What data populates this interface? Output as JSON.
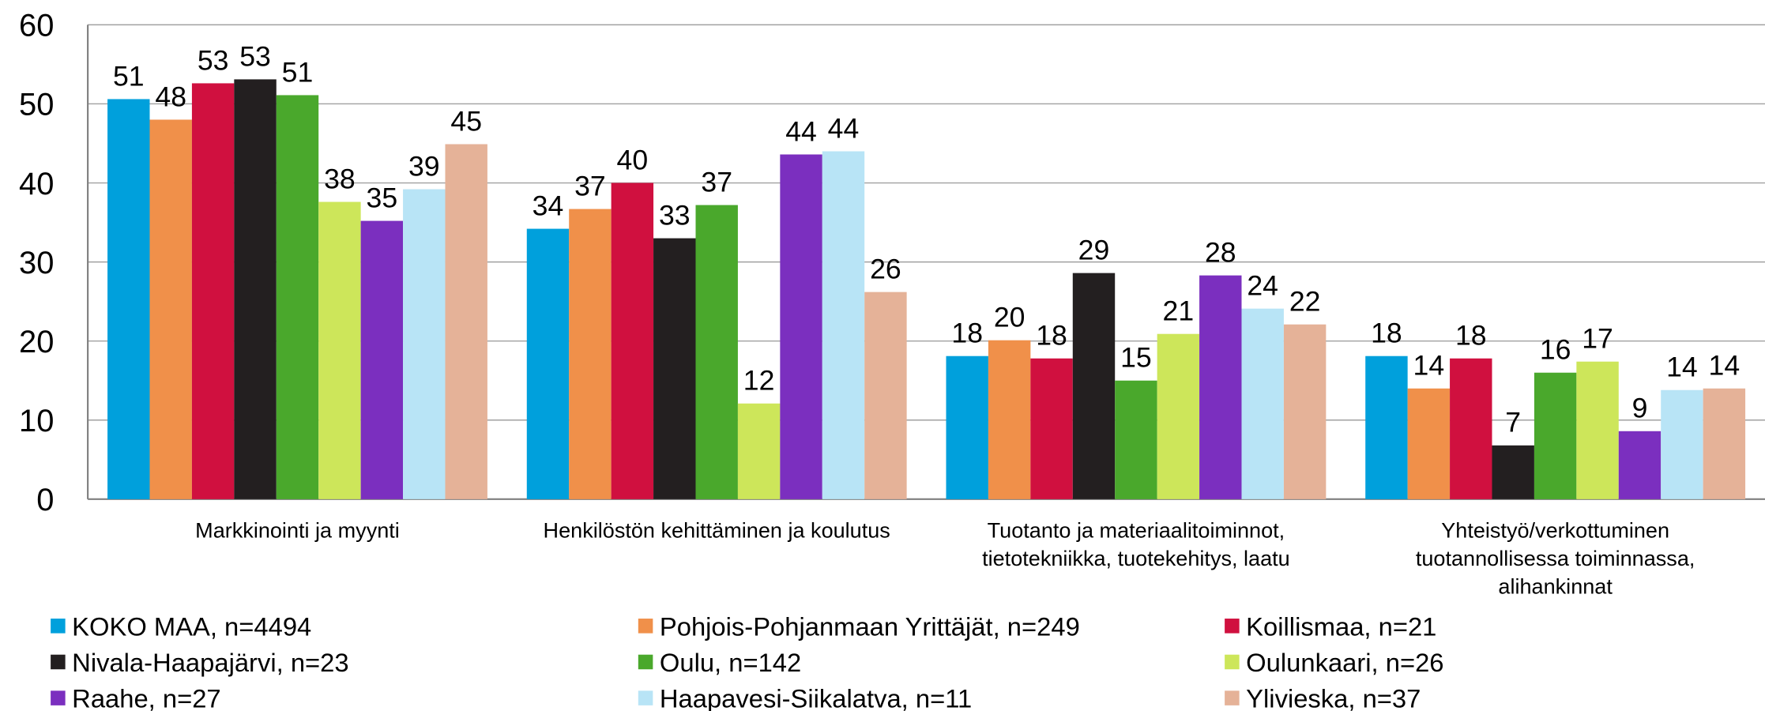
{
  "chart_data": {
    "type": "bar",
    "categories": [
      [
        "Markkinointi ja myynti"
      ],
      [
        "Henkilöstön kehittäminen ja koulutus"
      ],
      [
        "Tuotanto ja materiaalitoiminnot,",
        "tietotekniikka, tuotekehitys, laatu"
      ],
      [
        "Yhteistyö/verkottuminen",
        "tuotannollisessa toiminnassa,",
        "alihankinnat"
      ]
    ],
    "series": [
      {
        "name": "KOKO MAA, n=4494",
        "color": "#00a0dc",
        "values": [
          50.6,
          34.2,
          18.1,
          18.1
        ],
        "value_labels": [
          "51",
          "34",
          "18",
          "18"
        ]
      },
      {
        "name": "Pohjois-Pohjanmaan Yrittäjät, n=249",
        "color": "#f0904a",
        "values": [
          48.0,
          36.7,
          20.1,
          14.0
        ],
        "value_labels": [
          "48",
          "37",
          "20",
          "14"
        ]
      },
      {
        "name": "Koillismaa, n=21",
        "color": "#d0103f",
        "values": [
          52.6,
          40.0,
          17.8,
          17.8
        ],
        "value_labels": [
          "53",
          "40",
          "18",
          "18"
        ]
      },
      {
        "name": "Nivala-Haapajärvi, n=23",
        "color": "#231f20",
        "values": [
          53.1,
          33.0,
          28.6,
          6.8
        ],
        "value_labels": [
          "53",
          "33",
          "29",
          "7"
        ]
      },
      {
        "name": "Oulu, n=142",
        "color": "#4aa82c",
        "values": [
          51.1,
          37.2,
          15.0,
          16.0
        ],
        "value_labels": [
          "51",
          "37",
          "15",
          "16"
        ]
      },
      {
        "name": "Oulunkaari, n=26",
        "color": "#cde65a",
        "values": [
          37.6,
          12.1,
          20.9,
          17.4
        ],
        "value_labels": [
          "38",
          "12",
          "21",
          "17"
        ]
      },
      {
        "name": "Raahe, n=27",
        "color": "#7b2fbf",
        "values": [
          35.2,
          43.6,
          28.3,
          8.6
        ],
        "value_labels": [
          "35",
          "44",
          "28",
          "9"
        ]
      },
      {
        "name": "Haapavesi-Siikalatva, n=11",
        "color": "#b8e4f6",
        "values": [
          39.2,
          44.0,
          24.1,
          13.8
        ],
        "value_labels": [
          "39",
          "44",
          "24",
          "14"
        ]
      },
      {
        "name": "Ylivieska, n=37",
        "color": "#e5b298",
        "values": [
          44.9,
          26.2,
          22.1,
          14.0
        ],
        "value_labels": [
          "45",
          "26",
          "22",
          "14"
        ]
      }
    ],
    "ylim": [
      0,
      60
    ],
    "yticks": [
      0,
      10,
      20,
      30,
      40,
      50,
      60
    ],
    "grid": true,
    "legend": "bottom"
  }
}
